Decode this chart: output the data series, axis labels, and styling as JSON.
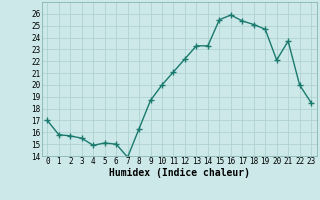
{
  "x": [
    0,
    1,
    2,
    3,
    4,
    5,
    6,
    7,
    8,
    9,
    10,
    11,
    12,
    13,
    14,
    15,
    16,
    17,
    18,
    19,
    20,
    21,
    22,
    23
  ],
  "y": [
    17.0,
    15.8,
    15.7,
    15.5,
    14.9,
    15.1,
    15.0,
    13.9,
    16.3,
    18.7,
    20.0,
    21.1,
    22.2,
    23.3,
    23.3,
    25.5,
    25.9,
    25.4,
    25.1,
    24.7,
    22.1,
    23.7,
    20.0,
    18.5
  ],
  "line_color": "#1a7a6e",
  "marker": "+",
  "marker_size": 4,
  "marker_lw": 1.0,
  "line_width": 1.0,
  "bg_color": "#cce8e8",
  "grid_color": "#aacece",
  "xlabel": "Humidex (Indice chaleur)",
  "xlim": [
    -0.5,
    23.5
  ],
  "ylim": [
    14,
    27
  ],
  "yticks": [
    14,
    15,
    16,
    17,
    18,
    19,
    20,
    21,
    22,
    23,
    24,
    25,
    26
  ],
  "xticks": [
    0,
    1,
    2,
    3,
    4,
    5,
    6,
    7,
    8,
    9,
    10,
    11,
    12,
    13,
    14,
    15,
    16,
    17,
    18,
    19,
    20,
    21,
    22,
    23
  ],
  "tick_fontsize": 5.5,
  "label_fontsize": 7
}
